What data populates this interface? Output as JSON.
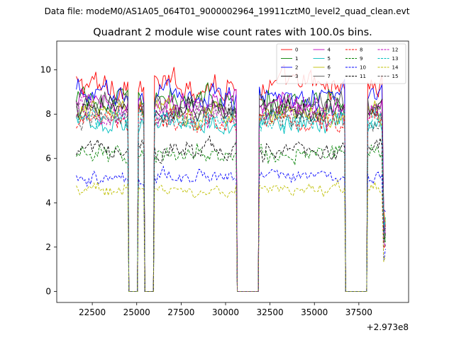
{
  "suptitle": "Data file: modeM0/AS1A05_064T01_9000002964_19911cztM0_level2_quad_clean.evt",
  "chart_data": {
    "type": "line",
    "title": "Quadrant 2 module wise count rates with 100.0s bins.",
    "xlabel": "",
    "ylabel": "",
    "x_offset_label": "+2.973e8",
    "xlim": [
      20500,
      40300
    ],
    "ylim": [
      -0.5,
      11.3
    ],
    "x_ticks": [
      22500,
      25000,
      27500,
      30000,
      32500,
      35000,
      37500
    ],
    "x_tick_labels": [
      "22500",
      "25000",
      "27500",
      "30000",
      "32500",
      "35000",
      "37500"
    ],
    "y_ticks": [
      0,
      2,
      4,
      6,
      8,
      10
    ],
    "y_tick_labels": [
      "0",
      "2",
      "4",
      "6",
      "8",
      "10"
    ],
    "legend_position": "top-right",
    "segments": [
      {
        "start": 21600,
        "end": 24500
      },
      {
        "start": 25100,
        "end": 25400
      },
      {
        "start": 26000,
        "end": 30600
      },
      {
        "start": 31900,
        "end": 36700
      },
      {
        "start": 38000,
        "end": 39000
      }
    ],
    "gap_value": 0,
    "bin_width": 100,
    "series": [
      {
        "name": "0",
        "color": "#ff0000",
        "dash": "solid",
        "mean": 9.3
      },
      {
        "name": "1",
        "color": "#008000",
        "dash": "solid",
        "mean": 8.6
      },
      {
        "name": "2",
        "color": "#0000ff",
        "dash": "solid",
        "mean": 8.9
      },
      {
        "name": "3",
        "color": "#000000",
        "dash": "solid",
        "mean": 8.2
      },
      {
        "name": "4",
        "color": "#bf00bf",
        "dash": "solid",
        "mean": 8.5
      },
      {
        "name": "5",
        "color": "#00bfbf",
        "dash": "solid",
        "mean": 7.6
      },
      {
        "name": "6",
        "color": "#bfbf00",
        "dash": "solid",
        "mean": 8.1
      },
      {
        "name": "7",
        "color": "#555555",
        "dash": "solid",
        "mean": 8.3
      },
      {
        "name": "8",
        "color": "#ff0000",
        "dash": "dashed",
        "mean": 7.7
      },
      {
        "name": "9",
        "color": "#008000",
        "dash": "dashed",
        "mean": 6.2
      },
      {
        "name": "10",
        "color": "#0000ff",
        "dash": "dashed",
        "mean": 5.2
      },
      {
        "name": "11",
        "color": "#000000",
        "dash": "dashed",
        "mean": 6.4
      },
      {
        "name": "12",
        "color": "#bf00bf",
        "dash": "dashed",
        "mean": 8.0
      },
      {
        "name": "13",
        "color": "#00bfbf",
        "dash": "dashed",
        "mean": 7.8
      },
      {
        "name": "14",
        "color": "#bfbf00",
        "dash": "dashed",
        "mean": 4.6
      },
      {
        "name": "15",
        "color": "#555555",
        "dash": "dashed",
        "mean": 7.9
      }
    ]
  }
}
